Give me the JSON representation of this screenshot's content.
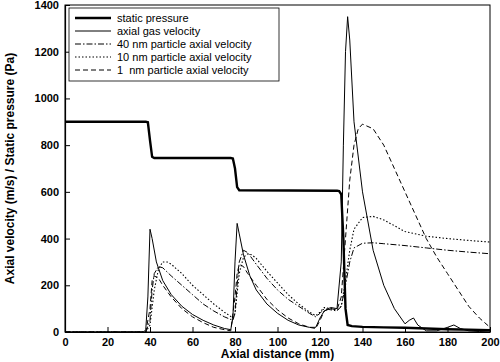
{
  "chart_data": {
    "type": "line",
    "x_label": "Axial distance (mm)",
    "y_label": "Axial velocity (m/s) / Static pressure (Pa)",
    "xlim": [
      0,
      200
    ],
    "ylim": [
      0,
      1400
    ],
    "xticks": [
      0,
      20,
      40,
      60,
      80,
      100,
      120,
      140,
      160,
      180,
      200
    ],
    "yticks": [
      0,
      200,
      400,
      600,
      800,
      1000,
      1200,
      1400
    ],
    "grid": false,
    "legend": "upper left",
    "series": [
      {
        "name": "static pressure",
        "color": "#000000",
        "line_style": "thick",
        "x": [
          0,
          38,
          39,
          40,
          41,
          42,
          78,
          79,
          80,
          81,
          82,
          128,
          129,
          130,
          131,
          132,
          133,
          135,
          140,
          150,
          160,
          180,
          200
        ],
        "values": [
          900,
          900,
          898,
          820,
          750,
          745,
          745,
          743,
          700,
          620,
          607,
          605,
          603,
          590,
          400,
          100,
          30,
          25,
          22,
          20,
          18,
          12,
          8
        ]
      },
      {
        "name": "axial gas velocity",
        "color": "#000000",
        "line_style": "solid",
        "x": [
          0,
          37,
          38,
          39,
          40,
          41,
          43,
          46,
          50,
          55,
          60,
          65,
          70,
          75,
          78,
          79,
          80,
          81,
          82,
          84,
          87,
          90,
          95,
          100,
          105,
          110,
          115,
          118,
          120,
          122,
          125,
          128,
          130,
          131,
          132,
          133,
          134,
          136,
          140,
          145,
          150,
          155,
          160,
          162,
          164,
          166,
          170,
          175,
          180,
          183,
          186,
          190,
          195,
          200
        ],
        "values": [
          0,
          0,
          10,
          150,
          440,
          400,
          300,
          220,
          160,
          110,
          75,
          50,
          30,
          15,
          10,
          60,
          300,
          465,
          420,
          330,
          240,
          180,
          120,
          80,
          50,
          30,
          20,
          20,
          60,
          90,
          105,
          100,
          300,
          800,
          1200,
          1350,
          1250,
          900,
          600,
          350,
          200,
          100,
          35,
          50,
          60,
          30,
          5,
          5,
          20,
          30,
          15,
          5,
          2,
          0
        ]
      },
      {
        "name": "40 nm particle axial velocity",
        "color": "#000000",
        "line_style": "dash-dot",
        "x": [
          0,
          38,
          40,
          41,
          42,
          44,
          46,
          50,
          55,
          60,
          65,
          70,
          75,
          79,
          80,
          81,
          82,
          84,
          86,
          90,
          95,
          100,
          105,
          110,
          115,
          118,
          120,
          122,
          125,
          128,
          130,
          132,
          134,
          136,
          140,
          145,
          150,
          160,
          170,
          180,
          190,
          200
        ],
        "values": [
          0,
          0,
          50,
          180,
          250,
          280,
          275,
          240,
          200,
          160,
          120,
          90,
          65,
          50,
          80,
          200,
          300,
          350,
          340,
          290,
          230,
          180,
          140,
          110,
          80,
          65,
          80,
          100,
          95,
          90,
          110,
          200,
          300,
          360,
          380,
          382,
          378,
          370,
          360,
          350,
          342,
          335
        ]
      },
      {
        "name": "10 nm particle axial velocity",
        "color": "#000000",
        "line_style": "dotted",
        "x": [
          0,
          38,
          40,
          42,
          44,
          46,
          48,
          50,
          55,
          60,
          65,
          70,
          75,
          79,
          80,
          82,
          84,
          86,
          88,
          90,
          95,
          100,
          105,
          110,
          115,
          118,
          120,
          122,
          125,
          128,
          130,
          132,
          134,
          136,
          140,
          145,
          150,
          160,
          170,
          180,
          190,
          200
        ],
        "values": [
          0,
          0,
          30,
          180,
          270,
          300,
          300,
          290,
          250,
          200,
          160,
          120,
          85,
          60,
          80,
          250,
          320,
          335,
          330,
          315,
          260,
          210,
          160,
          120,
          85,
          70,
          85,
          105,
          100,
          95,
          110,
          220,
          350,
          440,
          490,
          495,
          480,
          430,
          410,
          400,
          392,
          385
        ]
      },
      {
        "name": "1  nm particle axial velocity",
        "color": "#000000",
        "line_style": "dashed",
        "x": [
          0,
          38,
          40,
          41,
          42,
          44,
          46,
          50,
          55,
          60,
          65,
          70,
          75,
          78,
          80,
          81,
          82,
          84,
          86,
          90,
          95,
          100,
          105,
          110,
          115,
          118,
          120,
          122,
          125,
          128,
          130,
          132,
          134,
          136,
          138,
          140,
          145,
          150,
          155,
          160,
          165,
          170,
          175,
          180,
          185,
          190,
          195,
          200
        ],
        "values": [
          0,
          0,
          100,
          220,
          240,
          230,
          200,
          150,
          100,
          65,
          40,
          20,
          10,
          5,
          150,
          250,
          290,
          280,
          250,
          200,
          140,
          95,
          60,
          35,
          20,
          15,
          50,
          90,
          100,
          95,
          150,
          400,
          650,
          800,
          870,
          890,
          870,
          800,
          700,
          600,
          500,
          400,
          320,
          250,
          180,
          110,
          60,
          20
        ]
      }
    ]
  }
}
